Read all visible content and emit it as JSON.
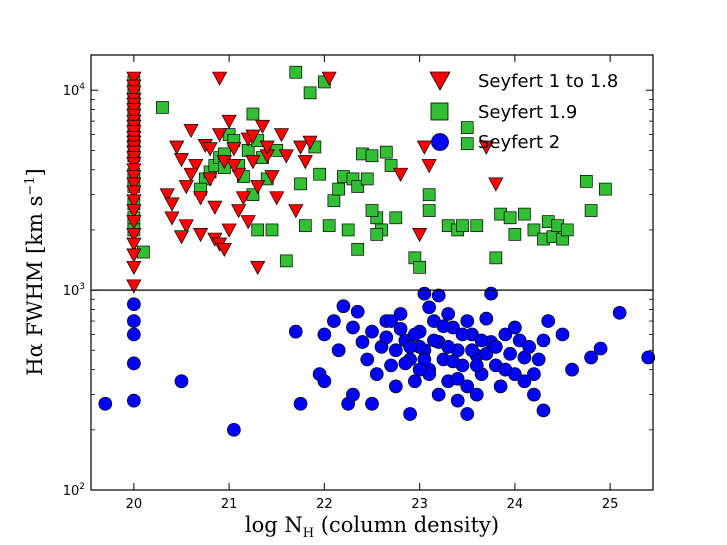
{
  "chart_data": {
    "type": "scatter",
    "title": "",
    "xlabel": "log N_H (column density)",
    "ylabel": "Hα FWHM [km s^-1]",
    "xlabel_parts": {
      "main": "log N",
      "sub": "H",
      "rest": " (column density)"
    },
    "ylabel_parts": {
      "main": "Hα FWHM [km s",
      "sup": "−1",
      "rest": "]"
    },
    "xlim": [
      19.55,
      25.45
    ],
    "ylim": [
      100,
      15000
    ],
    "yscale": "log",
    "xticks": [
      20,
      21,
      22,
      23,
      24,
      25
    ],
    "xtick_labels": [
      "20",
      "21",
      "22",
      "23",
      "24",
      "25"
    ],
    "yticks": [
      100,
      1000,
      10000
    ],
    "ytick_labels": [
      {
        "base": "10",
        "exp": "2"
      },
      {
        "base": "10",
        "exp": "3"
      },
      {
        "base": "10",
        "exp": "4"
      }
    ],
    "reference_line": {
      "y": 1000,
      "color": "#000000"
    },
    "legend_position": "top-right",
    "series": [
      {
        "name": "Seyfert 1 to 1.8",
        "marker": "triangle-down",
        "color": "#ff0000",
        "points": [
          [
            20,
            11500
          ],
          [
            20,
            10500
          ],
          [
            20,
            9800
          ],
          [
            20,
            9000
          ],
          [
            20,
            8500
          ],
          [
            20,
            8000
          ],
          [
            20,
            7500
          ],
          [
            20,
            7000
          ],
          [
            20,
            6600
          ],
          [
            20,
            6200
          ],
          [
            20,
            5800
          ],
          [
            20,
            5500
          ],
          [
            20,
            5200
          ],
          [
            20,
            4900
          ],
          [
            20,
            4600
          ],
          [
            20,
            4300
          ],
          [
            20,
            4000
          ],
          [
            20,
            3700
          ],
          [
            20,
            3400
          ],
          [
            20,
            3100
          ],
          [
            20,
            2800
          ],
          [
            20,
            2500
          ],
          [
            20,
            2200
          ],
          [
            20,
            1900
          ],
          [
            20,
            1700
          ],
          [
            20,
            1500
          ],
          [
            20,
            1300
          ],
          [
            20,
            1050
          ],
          [
            20.35,
            3000
          ],
          [
            20.4,
            2300
          ],
          [
            20.45,
            5200
          ],
          [
            20.5,
            4500
          ],
          [
            20.55,
            3300
          ],
          [
            20.6,
            6300
          ],
          [
            20.55,
            2100
          ],
          [
            20.65,
            4200
          ],
          [
            20.7,
            2900
          ],
          [
            20.75,
            5300
          ],
          [
            20.8,
            3600
          ],
          [
            20.85,
            2600
          ],
          [
            20.9,
            6000
          ],
          [
            20.95,
            4400
          ],
          [
            20.5,
            1850
          ],
          [
            20.7,
            1900
          ],
          [
            20.85,
            1800
          ],
          [
            20.9,
            1700
          ],
          [
            20.95,
            1600
          ],
          [
            21.0,
            7000
          ],
          [
            21.05,
            5100
          ],
          [
            21.1,
            3800
          ],
          [
            21.15,
            2900
          ],
          [
            21.2,
            5700
          ],
          [
            21.25,
            4400
          ],
          [
            21.3,
            3300
          ],
          [
            21.35,
            6600
          ],
          [
            21.4,
            4700
          ],
          [
            21.45,
            3700
          ],
          [
            21.5,
            2900
          ],
          [
            21.55,
            6000
          ],
          [
            21.6,
            4700
          ],
          [
            21.7,
            2500
          ],
          [
            21.75,
            5200
          ],
          [
            21.8,
            4400
          ],
          [
            21.85,
            5500
          ],
          [
            21.0,
            2000
          ],
          [
            21.1,
            2500
          ],
          [
            21.2,
            2200
          ],
          [
            21.3,
            1300
          ],
          [
            20.9,
            11500
          ],
          [
            22.05,
            11500
          ],
          [
            22.8,
            3800
          ],
          [
            23.0,
            1900
          ],
          [
            23.05,
            5200
          ],
          [
            23.1,
            4200
          ],
          [
            23.7,
            5200
          ],
          [
            23.8,
            3400
          ],
          [
            20.4,
            2700
          ],
          [
            20.6,
            3800
          ],
          [
            20.8,
            5100
          ],
          [
            21.05,
            4200
          ],
          [
            21.25,
            5900
          ],
          [
            21.4,
            5200
          ]
        ]
      },
      {
        "name": "Seyfert 1.9",
        "marker": "square",
        "color": "#33bf33",
        "points": [
          [
            20,
            11000
          ],
          [
            20,
            9500
          ],
          [
            20,
            8200
          ],
          [
            20,
            7300
          ],
          [
            20,
            6500
          ],
          [
            20,
            5600
          ],
          [
            20,
            4700
          ],
          [
            20,
            3800
          ],
          [
            20,
            3300
          ],
          [
            20,
            2700
          ],
          [
            20,
            2300
          ],
          [
            20,
            2000
          ],
          [
            20.1,
            1550
          ],
          [
            20.3,
            8200
          ],
          [
            20.75,
            3600
          ],
          [
            20.8,
            3900
          ],
          [
            20.85,
            4200
          ],
          [
            20.9,
            4600
          ],
          [
            20.95,
            4800
          ],
          [
            21.0,
            6000
          ],
          [
            21.05,
            5600
          ],
          [
            21.1,
            4200
          ],
          [
            21.15,
            3700
          ],
          [
            21.2,
            5000
          ],
          [
            21.25,
            7600
          ],
          [
            21.3,
            5600
          ],
          [
            21.35,
            4600
          ],
          [
            21.4,
            3600
          ],
          [
            21.5,
            5000
          ],
          [
            21.3,
            2000
          ],
          [
            21.45,
            2000
          ],
          [
            21.7,
            12300
          ],
          [
            21.75,
            3400
          ],
          [
            21.8,
            2100
          ],
          [
            21.85,
            9700
          ],
          [
            21.95,
            3800
          ],
          [
            21.9,
            5200
          ],
          [
            22.0,
            11000
          ],
          [
            22.1,
            2800
          ],
          [
            22.15,
            3200
          ],
          [
            22.2,
            3700
          ],
          [
            22.25,
            2000
          ],
          [
            22.3,
            3600
          ],
          [
            22.35,
            3300
          ],
          [
            22.4,
            4800
          ],
          [
            22.45,
            3600
          ],
          [
            22.5,
            4700
          ],
          [
            22.55,
            2300
          ],
          [
            22.6,
            2000
          ],
          [
            22.65,
            4900
          ],
          [
            22.7,
            4200
          ],
          [
            22.5,
            2500
          ],
          [
            22.55,
            1900
          ],
          [
            22.75,
            2300
          ],
          [
            22.95,
            1450
          ],
          [
            23.0,
            1300
          ],
          [
            23.1,
            3000
          ],
          [
            23.1,
            2500
          ],
          [
            23.3,
            2100
          ],
          [
            23.4,
            2000
          ],
          [
            23.45,
            2100
          ],
          [
            23.5,
            5400
          ],
          [
            23.5,
            6500
          ],
          [
            23.6,
            2100
          ],
          [
            23.8,
            1450
          ],
          [
            23.85,
            2400
          ],
          [
            23.95,
            2300
          ],
          [
            24.0,
            1900
          ],
          [
            24.1,
            2400
          ],
          [
            24.2,
            2000
          ],
          [
            24.3,
            1800
          ],
          [
            24.35,
            2200
          ],
          [
            24.4,
            1850
          ],
          [
            24.45,
            2100
          ],
          [
            24.5,
            1800
          ],
          [
            24.55,
            2000
          ],
          [
            24.75,
            3500
          ],
          [
            24.8,
            2500
          ],
          [
            24.95,
            3200
          ],
          [
            22.35,
            1600
          ],
          [
            22.05,
            2100
          ],
          [
            21.6,
            1400
          ],
          [
            21.25,
            3000
          ],
          [
            20.7,
            3200
          ],
          [
            20.95,
            4100
          ]
        ]
      },
      {
        "name": "Seyfert 2",
        "marker": "circle",
        "color": "#0000ff",
        "points": [
          [
            19.7,
            270
          ],
          [
            20.0,
            850
          ],
          [
            20.0,
            600
          ],
          [
            20.0,
            280
          ],
          [
            20.0,
            700
          ],
          [
            20.0,
            430
          ],
          [
            20.5,
            350
          ],
          [
            21.05,
            200
          ],
          [
            21.7,
            620
          ],
          [
            21.75,
            270
          ],
          [
            21.95,
            380
          ],
          [
            22.0,
            350
          ],
          [
            22.2,
            830
          ],
          [
            22.25,
            270
          ],
          [
            22.0,
            600
          ],
          [
            22.1,
            700
          ],
          [
            22.15,
            500
          ],
          [
            22.3,
            650
          ],
          [
            22.35,
            780
          ],
          [
            22.4,
            550
          ],
          [
            22.45,
            450
          ],
          [
            22.5,
            620
          ],
          [
            22.55,
            380
          ],
          [
            22.6,
            520
          ],
          [
            22.65,
            700
          ],
          [
            22.7,
            420
          ],
          [
            22.75,
            330
          ],
          [
            22.8,
            760
          ],
          [
            22.85,
            560
          ],
          [
            22.9,
            450
          ],
          [
            22.95,
            350
          ],
          [
            23.0,
            620
          ],
          [
            23.05,
            500
          ],
          [
            23.1,
            400
          ],
          [
            23.15,
            700
          ],
          [
            23.2,
            550
          ],
          [
            23.25,
            450
          ],
          [
            23.3,
            350
          ],
          [
            23.35,
            650
          ],
          [
            23.4,
            500
          ],
          [
            23.45,
            420
          ],
          [
            23.5,
            330
          ],
          [
            23.55,
            600
          ],
          [
            23.6,
            470
          ],
          [
            23.65,
            380
          ],
          [
            23.7,
            720
          ],
          [
            23.75,
            550
          ],
          [
            23.8,
            420
          ],
          [
            23.85,
            330
          ],
          [
            23.9,
            600
          ],
          [
            23.95,
            480
          ],
          [
            24.0,
            380
          ],
          [
            24.05,
            560
          ],
          [
            24.1,
            460
          ],
          [
            24.15,
            520
          ],
          [
            24.2,
            380
          ],
          [
            24.25,
            450
          ],
          [
            24.3,
            560
          ],
          [
            24.35,
            700
          ],
          [
            24.5,
            600
          ],
          [
            24.6,
            400
          ],
          [
            24.8,
            460
          ],
          [
            24.9,
            510
          ],
          [
            25.1,
            770
          ],
          [
            25.4,
            460
          ],
          [
            22.9,
            240
          ],
          [
            23.05,
            960
          ],
          [
            23.2,
            940
          ],
          [
            23.75,
            960
          ],
          [
            24.3,
            250
          ],
          [
            23.5,
            240
          ],
          [
            22.5,
            270
          ],
          [
            22.3,
            300
          ],
          [
            22.7,
            700
          ],
          [
            22.65,
            580
          ],
          [
            22.75,
            500
          ],
          [
            22.85,
            430
          ],
          [
            22.95,
            600
          ],
          [
            23.0,
            520
          ],
          [
            23.05,
            450
          ],
          [
            23.1,
            380
          ],
          [
            23.15,
            560
          ],
          [
            23.25,
            660
          ],
          [
            23.3,
            520
          ],
          [
            23.35,
            440
          ],
          [
            23.4,
            360
          ],
          [
            23.45,
            600
          ],
          [
            23.55,
            500
          ],
          [
            23.6,
            420
          ],
          [
            23.65,
            560
          ],
          [
            23.7,
            480
          ],
          [
            23.8,
            520
          ],
          [
            23.9,
            400
          ],
          [
            24.0,
            650
          ],
          [
            24.1,
            350
          ],
          [
            23.2,
            300
          ],
          [
            23.4,
            280
          ],
          [
            23.6,
            300
          ],
          [
            23.0,
            400
          ],
          [
            22.9,
            520
          ],
          [
            22.8,
            640
          ],
          [
            23.1,
            820
          ],
          [
            23.3,
            760
          ],
          [
            23.5,
            700
          ],
          [
            24.2,
            300
          ]
        ]
      }
    ]
  }
}
